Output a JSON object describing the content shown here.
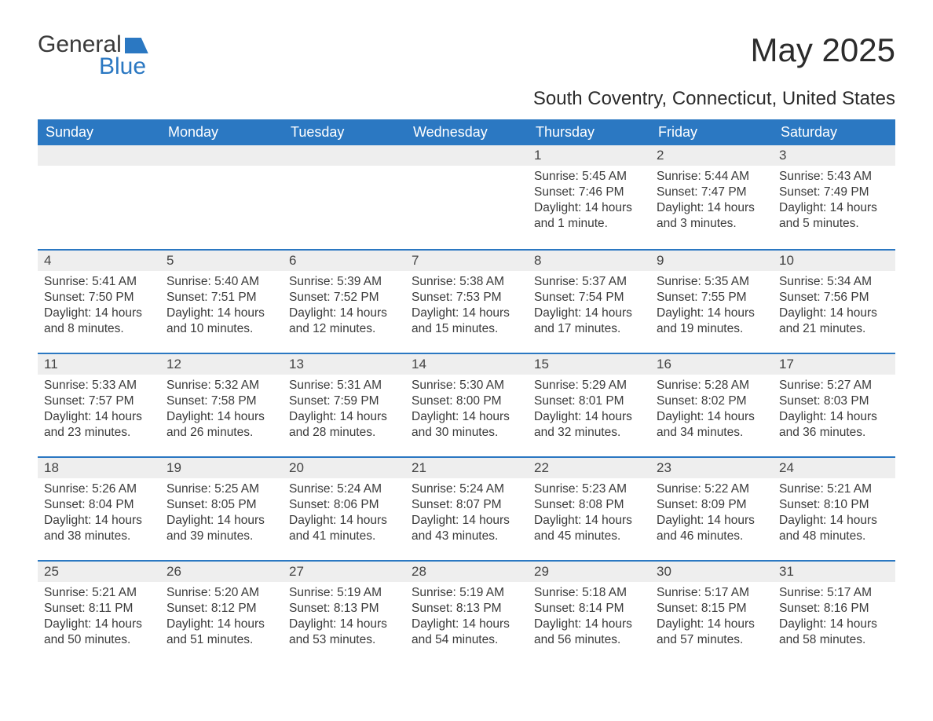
{
  "logo": {
    "text_a": "General",
    "text_b": "Blue"
  },
  "title": "May 2025",
  "location": "South Coventry, Connecticut, United States",
  "colors": {
    "header_bg": "#2b78c2",
    "header_text": "#ffffff",
    "daynum_bg": "#eeeeee",
    "border_accent": "#2b78c2",
    "body_text": "#3a3a3a",
    "page_bg": "#ffffff"
  },
  "day_headers": [
    "Sunday",
    "Monday",
    "Tuesday",
    "Wednesday",
    "Thursday",
    "Friday",
    "Saturday"
  ],
  "weeks": [
    [
      null,
      null,
      null,
      null,
      {
        "n": "1",
        "sunrise": "Sunrise: 5:45 AM",
        "sunset": "Sunset: 7:46 PM",
        "day1": "Daylight: 14 hours",
        "day2": "and 1 minute."
      },
      {
        "n": "2",
        "sunrise": "Sunrise: 5:44 AM",
        "sunset": "Sunset: 7:47 PM",
        "day1": "Daylight: 14 hours",
        "day2": "and 3 minutes."
      },
      {
        "n": "3",
        "sunrise": "Sunrise: 5:43 AM",
        "sunset": "Sunset: 7:49 PM",
        "day1": "Daylight: 14 hours",
        "day2": "and 5 minutes."
      }
    ],
    [
      {
        "n": "4",
        "sunrise": "Sunrise: 5:41 AM",
        "sunset": "Sunset: 7:50 PM",
        "day1": "Daylight: 14 hours",
        "day2": "and 8 minutes."
      },
      {
        "n": "5",
        "sunrise": "Sunrise: 5:40 AM",
        "sunset": "Sunset: 7:51 PM",
        "day1": "Daylight: 14 hours",
        "day2": "and 10 minutes."
      },
      {
        "n": "6",
        "sunrise": "Sunrise: 5:39 AM",
        "sunset": "Sunset: 7:52 PM",
        "day1": "Daylight: 14 hours",
        "day2": "and 12 minutes."
      },
      {
        "n": "7",
        "sunrise": "Sunrise: 5:38 AM",
        "sunset": "Sunset: 7:53 PM",
        "day1": "Daylight: 14 hours",
        "day2": "and 15 minutes."
      },
      {
        "n": "8",
        "sunrise": "Sunrise: 5:37 AM",
        "sunset": "Sunset: 7:54 PM",
        "day1": "Daylight: 14 hours",
        "day2": "and 17 minutes."
      },
      {
        "n": "9",
        "sunrise": "Sunrise: 5:35 AM",
        "sunset": "Sunset: 7:55 PM",
        "day1": "Daylight: 14 hours",
        "day2": "and 19 minutes."
      },
      {
        "n": "10",
        "sunrise": "Sunrise: 5:34 AM",
        "sunset": "Sunset: 7:56 PM",
        "day1": "Daylight: 14 hours",
        "day2": "and 21 minutes."
      }
    ],
    [
      {
        "n": "11",
        "sunrise": "Sunrise: 5:33 AM",
        "sunset": "Sunset: 7:57 PM",
        "day1": "Daylight: 14 hours",
        "day2": "and 23 minutes."
      },
      {
        "n": "12",
        "sunrise": "Sunrise: 5:32 AM",
        "sunset": "Sunset: 7:58 PM",
        "day1": "Daylight: 14 hours",
        "day2": "and 26 minutes."
      },
      {
        "n": "13",
        "sunrise": "Sunrise: 5:31 AM",
        "sunset": "Sunset: 7:59 PM",
        "day1": "Daylight: 14 hours",
        "day2": "and 28 minutes."
      },
      {
        "n": "14",
        "sunrise": "Sunrise: 5:30 AM",
        "sunset": "Sunset: 8:00 PM",
        "day1": "Daylight: 14 hours",
        "day2": "and 30 minutes."
      },
      {
        "n": "15",
        "sunrise": "Sunrise: 5:29 AM",
        "sunset": "Sunset: 8:01 PM",
        "day1": "Daylight: 14 hours",
        "day2": "and 32 minutes."
      },
      {
        "n": "16",
        "sunrise": "Sunrise: 5:28 AM",
        "sunset": "Sunset: 8:02 PM",
        "day1": "Daylight: 14 hours",
        "day2": "and 34 minutes."
      },
      {
        "n": "17",
        "sunrise": "Sunrise: 5:27 AM",
        "sunset": "Sunset: 8:03 PM",
        "day1": "Daylight: 14 hours",
        "day2": "and 36 minutes."
      }
    ],
    [
      {
        "n": "18",
        "sunrise": "Sunrise: 5:26 AM",
        "sunset": "Sunset: 8:04 PM",
        "day1": "Daylight: 14 hours",
        "day2": "and 38 minutes."
      },
      {
        "n": "19",
        "sunrise": "Sunrise: 5:25 AM",
        "sunset": "Sunset: 8:05 PM",
        "day1": "Daylight: 14 hours",
        "day2": "and 39 minutes."
      },
      {
        "n": "20",
        "sunrise": "Sunrise: 5:24 AM",
        "sunset": "Sunset: 8:06 PM",
        "day1": "Daylight: 14 hours",
        "day2": "and 41 minutes."
      },
      {
        "n": "21",
        "sunrise": "Sunrise: 5:24 AM",
        "sunset": "Sunset: 8:07 PM",
        "day1": "Daylight: 14 hours",
        "day2": "and 43 minutes."
      },
      {
        "n": "22",
        "sunrise": "Sunrise: 5:23 AM",
        "sunset": "Sunset: 8:08 PM",
        "day1": "Daylight: 14 hours",
        "day2": "and 45 minutes."
      },
      {
        "n": "23",
        "sunrise": "Sunrise: 5:22 AM",
        "sunset": "Sunset: 8:09 PM",
        "day1": "Daylight: 14 hours",
        "day2": "and 46 minutes."
      },
      {
        "n": "24",
        "sunrise": "Sunrise: 5:21 AM",
        "sunset": "Sunset: 8:10 PM",
        "day1": "Daylight: 14 hours",
        "day2": "and 48 minutes."
      }
    ],
    [
      {
        "n": "25",
        "sunrise": "Sunrise: 5:21 AM",
        "sunset": "Sunset: 8:11 PM",
        "day1": "Daylight: 14 hours",
        "day2": "and 50 minutes."
      },
      {
        "n": "26",
        "sunrise": "Sunrise: 5:20 AM",
        "sunset": "Sunset: 8:12 PM",
        "day1": "Daylight: 14 hours",
        "day2": "and 51 minutes."
      },
      {
        "n": "27",
        "sunrise": "Sunrise: 5:19 AM",
        "sunset": "Sunset: 8:13 PM",
        "day1": "Daylight: 14 hours",
        "day2": "and 53 minutes."
      },
      {
        "n": "28",
        "sunrise": "Sunrise: 5:19 AM",
        "sunset": "Sunset: 8:13 PM",
        "day1": "Daylight: 14 hours",
        "day2": "and 54 minutes."
      },
      {
        "n": "29",
        "sunrise": "Sunrise: 5:18 AM",
        "sunset": "Sunset: 8:14 PM",
        "day1": "Daylight: 14 hours",
        "day2": "and 56 minutes."
      },
      {
        "n": "30",
        "sunrise": "Sunrise: 5:17 AM",
        "sunset": "Sunset: 8:15 PM",
        "day1": "Daylight: 14 hours",
        "day2": "and 57 minutes."
      },
      {
        "n": "31",
        "sunrise": "Sunrise: 5:17 AM",
        "sunset": "Sunset: 8:16 PM",
        "day1": "Daylight: 14 hours",
        "day2": "and 58 minutes."
      }
    ]
  ]
}
